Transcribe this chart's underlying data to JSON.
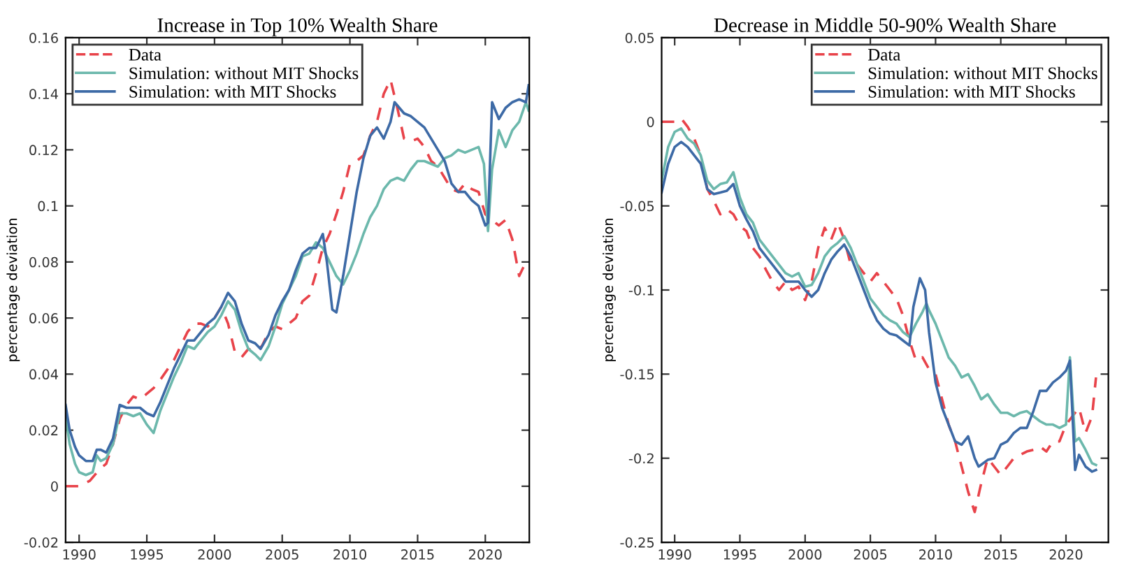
{
  "chart_data": [
    {
      "type": "line",
      "title": "Increase in Top 10% Wealth Share",
      "ylabel": "percentage deviation",
      "xlim": [
        1989,
        2023.25
      ],
      "xticks": [
        1990,
        1995,
        2000,
        2005,
        2010,
        2015,
        2020
      ],
      "ylim": [
        -0.02,
        0.16
      ],
      "yticks": [
        -0.02,
        0,
        0.02,
        0.04,
        0.06,
        0.08,
        0.1,
        0.12,
        0.14,
        0.16
      ],
      "grid": false,
      "legend": "top left",
      "series": [
        {
          "name": "Data",
          "color": "#e8434a",
          "line_style": "dashed",
          "x": [
            1989,
            1990,
            1990.8,
            1991.5,
            1992,
            1992.5,
            1993,
            1993.5,
            1994,
            1994.5,
            1995,
            1995.5,
            1996,
            1997,
            1997.5,
            1998,
            1998.5,
            1999,
            1999.5,
            2000,
            2000.5,
            2001,
            2001.5,
            2002,
            2002.5,
            2003,
            2003.5,
            2004,
            2004.5,
            2005,
            2005.5,
            2006,
            2006.5,
            2007,
            2007.5,
            2008,
            2008.5,
            2009,
            2009.5,
            2010,
            2010.5,
            2011,
            2011.5,
            2012,
            2012.5,
            2013,
            2013.5,
            2014,
            2014.5,
            2015,
            2015.5,
            2016,
            2016.5,
            2017,
            2017.5,
            2018,
            2018.5,
            2019,
            2019.5,
            2020,
            2020.5,
            2021,
            2021.5,
            2022,
            2022.5,
            2023,
            2023.2
          ],
          "values": [
            0.0,
            0.0,
            0.002,
            0.006,
            0.008,
            0.015,
            0.024,
            0.029,
            0.032,
            0.031,
            0.033,
            0.035,
            0.038,
            0.045,
            0.05,
            0.055,
            0.058,
            0.058,
            0.057,
            0.06,
            0.064,
            0.058,
            0.048,
            0.046,
            0.049,
            0.048,
            0.05,
            0.055,
            0.057,
            0.056,
            0.058,
            0.06,
            0.066,
            0.068,
            0.076,
            0.085,
            0.09,
            0.097,
            0.105,
            0.115,
            0.116,
            0.118,
            0.125,
            0.13,
            0.14,
            0.145,
            0.135,
            0.124,
            0.123,
            0.124,
            0.121,
            0.116,
            0.114,
            0.11,
            0.106,
            0.105,
            0.108,
            0.106,
            0.105,
            0.097,
            0.095,
            0.093,
            0.095,
            0.088,
            0.075,
            0.08,
            0.081
          ]
        },
        {
          "name": "Simulation: without MIT Shocks",
          "color": "#6cb8ac",
          "line_style": "solid",
          "x": [
            1989,
            1989.3,
            1989.7,
            1990,
            1990.5,
            1991,
            1991.3,
            1991.6,
            1992,
            1992.5,
            1993,
            1993.5,
            1994,
            1994.5,
            1995,
            1995.5,
            1996,
            1996.5,
            1997,
            1997.5,
            1998,
            1998.5,
            1999,
            1999.5,
            2000,
            2000.5,
            2001,
            2001.5,
            2002,
            2002.5,
            2003,
            2003.4,
            2004,
            2004.5,
            2005,
            2005.5,
            2006,
            2006.5,
            2007,
            2007.5,
            2008,
            2008.5,
            2009,
            2009.5,
            2010,
            2010.5,
            2011,
            2011.5,
            2012,
            2012.5,
            2013,
            2013.5,
            2014,
            2014.5,
            2015,
            2015.5,
            2016,
            2016.5,
            2017,
            2017.5,
            2018,
            2018.5,
            2019,
            2019.5,
            2019.9,
            2020.2,
            2020.5,
            2021,
            2021.5,
            2022,
            2022.5,
            2023,
            2023.2
          ],
          "values": [
            0.025,
            0.015,
            0.008,
            0.005,
            0.004,
            0.005,
            0.011,
            0.009,
            0.01,
            0.015,
            0.026,
            0.026,
            0.025,
            0.026,
            0.022,
            0.019,
            0.027,
            0.033,
            0.039,
            0.044,
            0.05,
            0.049,
            0.052,
            0.055,
            0.057,
            0.061,
            0.066,
            0.063,
            0.055,
            0.049,
            0.047,
            0.045,
            0.05,
            0.057,
            0.065,
            0.07,
            0.075,
            0.082,
            0.083,
            0.087,
            0.085,
            0.08,
            0.075,
            0.072,
            0.077,
            0.083,
            0.09,
            0.096,
            0.1,
            0.106,
            0.109,
            0.11,
            0.109,
            0.113,
            0.116,
            0.116,
            0.115,
            0.114,
            0.117,
            0.118,
            0.12,
            0.119,
            0.12,
            0.121,
            0.115,
            0.091,
            0.113,
            0.127,
            0.121,
            0.127,
            0.13,
            0.137,
            0.134
          ]
        },
        {
          "name": "Simulation: with MIT Shocks",
          "color": "#3d6aa6",
          "line_style": "solid",
          "x": [
            1989,
            1989.3,
            1989.7,
            1990,
            1990.5,
            1991,
            1991.3,
            1991.6,
            1992,
            1992.5,
            1993,
            1993.5,
            1994,
            1994.5,
            1995,
            1995.5,
            1996,
            1996.5,
            1997,
            1997.5,
            1998,
            1998.5,
            1999,
            1999.5,
            2000,
            2000.5,
            2001,
            2001.5,
            2002,
            2002.5,
            2003,
            2003.4,
            2004,
            2004.5,
            2005,
            2005.5,
            2006,
            2006.5,
            2007,
            2007.5,
            2008,
            2008.3,
            2008.7,
            2009,
            2009.5,
            2010,
            2010.5,
            2011,
            2011.5,
            2012,
            2012.5,
            2013,
            2013.3,
            2014,
            2014.5,
            2015,
            2015.5,
            2016,
            2016.5,
            2017,
            2017.5,
            2018,
            2018.5,
            2019,
            2019.5,
            2020,
            2020.2,
            2020.5,
            2021,
            2021.5,
            2022,
            2022.5,
            2023,
            2023.2
          ],
          "values": [
            0.029,
            0.02,
            0.014,
            0.011,
            0.009,
            0.009,
            0.013,
            0.013,
            0.012,
            0.017,
            0.029,
            0.028,
            0.028,
            0.028,
            0.026,
            0.025,
            0.03,
            0.036,
            0.042,
            0.047,
            0.052,
            0.052,
            0.055,
            0.058,
            0.06,
            0.064,
            0.069,
            0.066,
            0.058,
            0.052,
            0.051,
            0.049,
            0.054,
            0.061,
            0.066,
            0.07,
            0.077,
            0.083,
            0.085,
            0.085,
            0.09,
            0.08,
            0.063,
            0.062,
            0.075,
            0.09,
            0.105,
            0.117,
            0.125,
            0.128,
            0.124,
            0.13,
            0.137,
            0.133,
            0.132,
            0.13,
            0.128,
            0.124,
            0.12,
            0.116,
            0.108,
            0.105,
            0.105,
            0.102,
            0.1,
            0.093,
            0.094,
            0.137,
            0.131,
            0.135,
            0.137,
            0.138,
            0.137,
            0.143
          ]
        }
      ]
    },
    {
      "type": "line",
      "title": "Decrease in Middle 50-90% Wealth Share",
      "ylabel": "percentage deviation",
      "xlim": [
        1989,
        2023.25
      ],
      "xticks": [
        1990,
        1995,
        2000,
        2005,
        2010,
        2015,
        2020
      ],
      "ylim": [
        -0.25,
        0.05
      ],
      "yticks": [
        -0.25,
        -0.2,
        -0.15,
        -0.1,
        -0.05,
        0,
        0.05
      ],
      "grid": false,
      "legend": "top right",
      "series": [
        {
          "name": "Data",
          "color": "#e8434a",
          "line_style": "dashed",
          "x": [
            1989,
            1990,
            1990.5,
            1991,
            1991.5,
            1992,
            1992.5,
            1993,
            1993.5,
            1994,
            1994.5,
            1995,
            1995.5,
            1996,
            1996.5,
            1997,
            1997.5,
            1998,
            1998.5,
            1999,
            1999.5,
            2000,
            2000.5,
            2001,
            2001.5,
            2002,
            2002.5,
            2003,
            2003.5,
            2004,
            2004.5,
            2005,
            2005.5,
            2006,
            2006.5,
            2007,
            2007.5,
            2008,
            2008.5,
            2009,
            2009.5,
            2010,
            2010.5,
            2011,
            2011.5,
            2012,
            2012.5,
            2013,
            2013.5,
            2014,
            2014.5,
            2015,
            2015.5,
            2016,
            2016.5,
            2017,
            2017.5,
            2018,
            2018.5,
            2019,
            2019.5,
            2020,
            2020.5,
            2021,
            2021.5,
            2022,
            2022.3
          ],
          "values": [
            0,
            0.0,
            0.002,
            -0.003,
            -0.01,
            -0.02,
            -0.04,
            -0.047,
            -0.055,
            -0.052,
            -0.055,
            -0.062,
            -0.065,
            -0.075,
            -0.08,
            -0.088,
            -0.095,
            -0.1,
            -0.095,
            -0.1,
            -0.098,
            -0.106,
            -0.095,
            -0.075,
            -0.063,
            -0.07,
            -0.06,
            -0.07,
            -0.085,
            -0.085,
            -0.09,
            -0.095,
            -0.09,
            -0.095,
            -0.1,
            -0.105,
            -0.115,
            -0.13,
            -0.142,
            -0.14,
            -0.147,
            -0.15,
            -0.165,
            -0.18,
            -0.19,
            -0.205,
            -0.22,
            -0.232,
            -0.215,
            -0.2,
            -0.205,
            -0.21,
            -0.205,
            -0.2,
            -0.198,
            -0.196,
            -0.195,
            -0.193,
            -0.196,
            -0.19,
            -0.19,
            -0.18,
            -0.175,
            -0.17,
            -0.185,
            -0.175,
            -0.152
          ]
        },
        {
          "name": "Simulation: without MIT Shocks",
          "color": "#6cb8ac",
          "line_style": "solid",
          "x": [
            1989,
            1989.5,
            1990,
            1990.5,
            1991,
            1991.5,
            1992,
            1992.5,
            1993,
            1993.5,
            1994,
            1994.5,
            1995,
            1995.5,
            1996,
            1996.5,
            1997,
            1997.5,
            1998,
            1998.5,
            1999,
            1999.5,
            2000,
            2000.5,
            2001,
            2001.5,
            2002,
            2002.5,
            2003,
            2003.5,
            2004,
            2004.5,
            2005,
            2005.5,
            2006,
            2006.5,
            2007,
            2007.5,
            2008,
            2008.5,
            2009,
            2009.3,
            2009.5,
            2010,
            2010.5,
            2011,
            2011.5,
            2012,
            2012.5,
            2013,
            2013.5,
            2014,
            2014.5,
            2015,
            2015.5,
            2016,
            2016.5,
            2017,
            2017.5,
            2018,
            2018.5,
            2019,
            2019.5,
            2020,
            2020.3,
            2020.7,
            2021,
            2021.5,
            2022,
            2022.3
          ],
          "values": [
            -0.035,
            -0.015,
            -0.006,
            -0.004,
            -0.01,
            -0.013,
            -0.02,
            -0.035,
            -0.04,
            -0.037,
            -0.036,
            -0.03,
            -0.045,
            -0.055,
            -0.06,
            -0.07,
            -0.075,
            -0.08,
            -0.085,
            -0.09,
            -0.092,
            -0.09,
            -0.098,
            -0.097,
            -0.09,
            -0.08,
            -0.075,
            -0.072,
            -0.068,
            -0.075,
            -0.085,
            -0.095,
            -0.105,
            -0.11,
            -0.115,
            -0.118,
            -0.12,
            -0.125,
            -0.128,
            -0.12,
            -0.113,
            -0.108,
            -0.112,
            -0.12,
            -0.13,
            -0.14,
            -0.145,
            -0.152,
            -0.15,
            -0.157,
            -0.165,
            -0.162,
            -0.168,
            -0.173,
            -0.173,
            -0.175,
            -0.173,
            -0.172,
            -0.175,
            -0.178,
            -0.18,
            -0.18,
            -0.182,
            -0.18,
            -0.14,
            -0.19,
            -0.188,
            -0.195,
            -0.203,
            -0.204
          ]
        },
        {
          "name": "Simulation: with MIT Shocks",
          "color": "#3d6aa6",
          "line_style": "solid",
          "x": [
            1989,
            1989.5,
            1990,
            1990.5,
            1991,
            1991.5,
            1992,
            1992.5,
            1993,
            1993.5,
            1994,
            1994.5,
            1995,
            1995.5,
            1996,
            1996.5,
            1997,
            1997.5,
            1998,
            1998.5,
            1999,
            1999.5,
            2000,
            2000.5,
            2001,
            2001.5,
            2002,
            2002.5,
            2003,
            2003.5,
            2004,
            2004.5,
            2005,
            2005.5,
            2006,
            2006.5,
            2007,
            2007.5,
            2008,
            2008.3,
            2008.8,
            2009.2,
            2009.5,
            2010,
            2010.5,
            2011,
            2011.5,
            2012,
            2012.5,
            2013,
            2013.3,
            2014,
            2014.5,
            2015,
            2015.5,
            2016,
            2016.5,
            2017,
            2017.5,
            2018,
            2018.5,
            2019,
            2019.5,
            2020,
            2020.3,
            2020.7,
            2021,
            2021.5,
            2022,
            2022.3
          ],
          "values": [
            -0.042,
            -0.025,
            -0.015,
            -0.012,
            -0.015,
            -0.02,
            -0.025,
            -0.04,
            -0.043,
            -0.042,
            -0.041,
            -0.037,
            -0.05,
            -0.058,
            -0.065,
            -0.075,
            -0.08,
            -0.085,
            -0.09,
            -0.095,
            -0.095,
            -0.095,
            -0.1,
            -0.104,
            -0.1,
            -0.09,
            -0.082,
            -0.077,
            -0.073,
            -0.08,
            -0.09,
            -0.1,
            -0.11,
            -0.118,
            -0.123,
            -0.126,
            -0.127,
            -0.13,
            -0.133,
            -0.11,
            -0.093,
            -0.1,
            -0.125,
            -0.155,
            -0.17,
            -0.18,
            -0.19,
            -0.192,
            -0.187,
            -0.2,
            -0.205,
            -0.201,
            -0.2,
            -0.192,
            -0.19,
            -0.185,
            -0.182,
            -0.182,
            -0.172,
            -0.16,
            -0.16,
            -0.155,
            -0.152,
            -0.148,
            -0.142,
            -0.207,
            -0.198,
            -0.205,
            -0.208,
            -0.207
          ]
        }
      ]
    }
  ]
}
